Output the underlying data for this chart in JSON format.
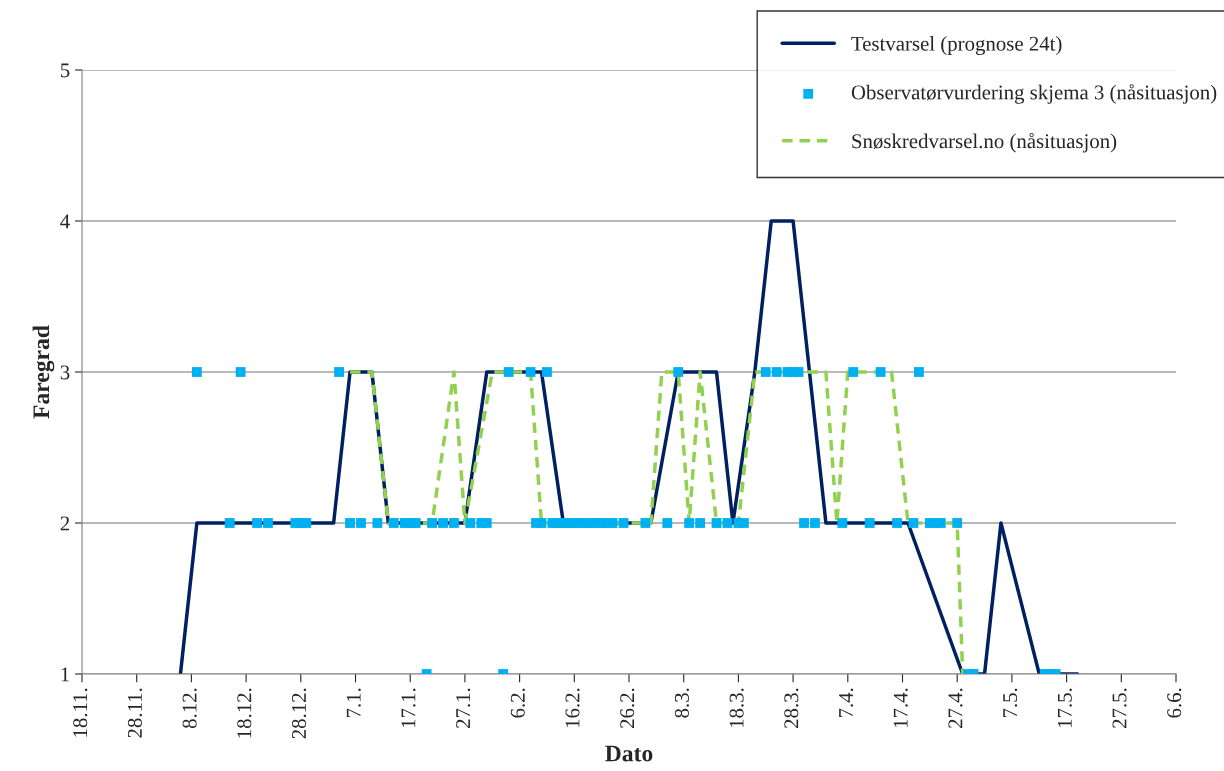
{
  "chart_data": {
    "type": "line",
    "xlabel": "Dato",
    "ylabel": "Faregrad",
    "categories": [
      "18.11.",
      null,
      null,
      null,
      null,
      null,
      null,
      null,
      null,
      null,
      "28.11.",
      null,
      null,
      null,
      null,
      null,
      null,
      null,
      null,
      null,
      "8.12.",
      null,
      null,
      null,
      null,
      null,
      null,
      null,
      null,
      null,
      "18.12.",
      null,
      null,
      null,
      null,
      null,
      null,
      null,
      null,
      null,
      "28.12.",
      null,
      null,
      null,
      null,
      null,
      null,
      null,
      null,
      null,
      "7.1.",
      null,
      null,
      null,
      null,
      null,
      null,
      null,
      null,
      null,
      "17.1.",
      null,
      null,
      null,
      null,
      null,
      null,
      null,
      null,
      null,
      "27.1.",
      null,
      null,
      null,
      null,
      null,
      null,
      null,
      null,
      null,
      "6.2.",
      null,
      null,
      null,
      null,
      null,
      null,
      null,
      null,
      null,
      "16.2.",
      null,
      null,
      null,
      null,
      null,
      null,
      null,
      null,
      null,
      "26.2.",
      null,
      null,
      null,
      null,
      null,
      null,
      null,
      null,
      null,
      "8.3.",
      null,
      null,
      null,
      null,
      null,
      null,
      null,
      null,
      null,
      "18.3.",
      null,
      null,
      null,
      null,
      null,
      null,
      null,
      null,
      null,
      "28.3.",
      null,
      null,
      null,
      null,
      null,
      null,
      null,
      null,
      null,
      "7.4.",
      null,
      null,
      null,
      null,
      null,
      null,
      null,
      null,
      null,
      "17.4.",
      null,
      null,
      null,
      null,
      null,
      null,
      null,
      null,
      null,
      "27.4.",
      null,
      null,
      null,
      null,
      null,
      null,
      null,
      null,
      null,
      "7.5.",
      null,
      null,
      null,
      null,
      null,
      null,
      null,
      null,
      null,
      "17.5.",
      null,
      null,
      null,
      null,
      null,
      null,
      null,
      null,
      null,
      "27.5.",
      null,
      null,
      null,
      null,
      null,
      null,
      null,
      null,
      null,
      "6.6."
    ],
    "ylim": [
      1,
      5
    ],
    "yticks": [
      1,
      2,
      3,
      4,
      5
    ],
    "grid": "y",
    "legend": "top right",
    "series": [
      {
        "name": "Testvarsel (prognose 24t)",
        "color": "#002060",
        "line_style": "solid",
        "marker": "none",
        "values": [
          null,
          null,
          null,
          null,
          null,
          null,
          null,
          null,
          null,
          null,
          null,
          null,
          null,
          null,
          null,
          null,
          null,
          null,
          1,
          null,
          null,
          2,
          null,
          null,
          null,
          null,
          null,
          null,
          null,
          null,
          null,
          null,
          null,
          null,
          null,
          null,
          null,
          null,
          null,
          null,
          null,
          null,
          null,
          null,
          null,
          null,
          2,
          null,
          null,
          3,
          null,
          null,
          null,
          3,
          null,
          null,
          2,
          null,
          null,
          null,
          null,
          null,
          null,
          null,
          null,
          null,
          null,
          null,
          null,
          null,
          2,
          null,
          null,
          null,
          3,
          null,
          null,
          null,
          null,
          null,
          null,
          null,
          null,
          null,
          3,
          null,
          null,
          null,
          2,
          null,
          null,
          null,
          null,
          null,
          null,
          null,
          null,
          null,
          null,
          null,
          null,
          null,
          null,
          null,
          2,
          null,
          null,
          null,
          null,
          3,
          null,
          null,
          null,
          null,
          null,
          null,
          3,
          null,
          null,
          2,
          null,
          null,
          null,
          3,
          null,
          null,
          4,
          null,
          null,
          null,
          4,
          null,
          null,
          null,
          null,
          null,
          2,
          null,
          null,
          null,
          null,
          null,
          null,
          null,
          null,
          null,
          null,
          null,
          null,
          null,
          null,
          2,
          null,
          null,
          null,
          null,
          null,
          null,
          null,
          null,
          null,
          1,
          null,
          null,
          null,
          1,
          null,
          null,
          2,
          null,
          null,
          null,
          null,
          null,
          null,
          1,
          null,
          null,
          null,
          null,
          null,
          null,
          1,
          null,
          null,
          null,
          null,
          null,
          null,
          null,
          null,
          null,
          null,
          null,
          null,
          null,
          null,
          null,
          null,
          null,
          null
        ]
      },
      {
        "name": "Observatørvurdering skjema 3 (nåsituasjon)",
        "type": "scatter",
        "color": "#00b0f0",
        "marker": "square",
        "values": [
          null,
          null,
          null,
          null,
          null,
          null,
          null,
          null,
          null,
          null,
          null,
          null,
          null,
          null,
          null,
          null,
          null,
          null,
          null,
          null,
          null,
          3,
          null,
          null,
          null,
          null,
          null,
          2,
          null,
          3,
          null,
          null,
          2,
          null,
          2,
          null,
          null,
          null,
          null,
          2,
          2,
          2,
          null,
          null,
          null,
          null,
          null,
          3,
          null,
          2,
          null,
          2,
          null,
          null,
          2,
          null,
          null,
          2,
          null,
          2,
          2,
          2,
          null,
          1,
          2,
          null,
          2,
          null,
          2,
          null,
          null,
          2,
          null,
          2,
          2,
          null,
          null,
          1,
          3,
          null,
          null,
          null,
          3,
          2,
          2,
          3,
          2,
          2,
          2,
          2,
          2,
          2,
          2,
          2,
          2,
          2,
          2,
          2,
          null,
          2,
          null,
          null,
          null,
          2,
          null,
          null,
          null,
          2,
          null,
          3,
          null,
          2,
          null,
          2,
          null,
          null,
          2,
          null,
          2,
          null,
          2,
          2,
          null,
          null,
          null,
          3,
          null,
          3,
          null,
          3,
          3,
          3,
          2,
          null,
          2,
          null,
          null,
          null,
          null,
          2,
          null,
          3,
          null,
          null,
          2,
          null,
          3,
          null,
          null,
          2,
          null,
          null,
          2,
          3,
          null,
          2,
          2,
          2,
          null,
          null,
          2,
          null,
          1,
          1,
          null,
          null,
          null,
          null,
          null,
          null,
          null,
          null,
          null,
          null,
          null,
          null,
          1,
          1,
          1,
          null,
          null,
          null,
          null,
          null,
          null,
          null,
          null,
          null,
          null,
          null,
          null,
          null,
          null,
          null,
          null,
          null,
          null,
          null,
          null,
          null,
          null
        ]
      },
      {
        "name": "Snøskredvarsel.no (nåsituasjon)",
        "color": "#92d050",
        "line_style": "dashed",
        "marker": "none",
        "values": [
          null,
          null,
          null,
          null,
          null,
          null,
          null,
          null,
          null,
          null,
          null,
          null,
          null,
          null,
          null,
          null,
          null,
          null,
          null,
          null,
          null,
          null,
          null,
          null,
          null,
          null,
          null,
          null,
          null,
          null,
          null,
          null,
          null,
          null,
          null,
          null,
          null,
          null,
          null,
          null,
          null,
          null,
          null,
          null,
          null,
          null,
          null,
          null,
          null,
          3,
          null,
          null,
          null,
          3,
          null,
          null,
          2,
          null,
          null,
          null,
          null,
          null,
          null,
          null,
          2,
          null,
          null,
          null,
          3,
          null,
          2,
          null,
          null,
          null,
          null,
          3,
          null,
          null,
          null,
          null,
          null,
          null,
          3,
          null,
          2,
          null,
          null,
          null,
          null,
          null,
          null,
          null,
          null,
          null,
          null,
          null,
          null,
          null,
          null,
          null,
          null,
          null,
          null,
          null,
          2,
          null,
          3,
          null,
          null,
          3,
          null,
          2,
          null,
          3,
          null,
          null,
          2,
          null,
          null,
          null,
          2,
          null,
          null,
          3,
          null,
          null,
          null,
          null,
          null,
          null,
          null,
          null,
          null,
          null,
          null,
          null,
          3,
          null,
          2,
          null,
          3,
          null,
          null,
          null,
          null,
          null,
          null,
          null,
          3,
          null,
          null,
          2,
          null,
          null,
          null,
          null,
          null,
          null,
          null,
          null,
          2,
          1,
          null,
          null,
          null,
          null,
          null,
          null,
          null,
          null,
          null,
          null,
          null,
          null,
          null,
          null,
          null,
          null,
          null,
          null,
          null,
          null,
          null,
          null,
          null,
          null,
          null,
          null,
          null,
          null,
          null,
          null,
          null,
          null,
          null,
          null,
          null,
          null,
          null,
          null,
          null
        ]
      }
    ]
  }
}
